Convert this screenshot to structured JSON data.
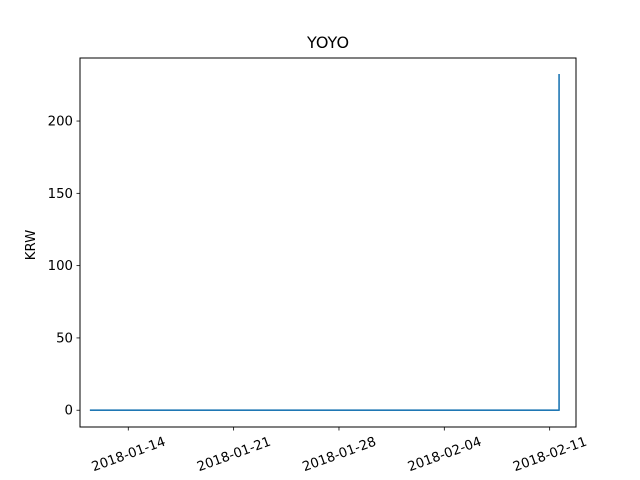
{
  "chart_data": {
    "type": "line",
    "title": "YOYO",
    "xlabel": "",
    "ylabel": "KRW",
    "x_ticks": [
      "2018-01-14",
      "2018-01-21",
      "2018-01-28",
      "2018-02-04",
      "2018-02-11"
    ],
    "y_ticks": [
      0,
      50,
      100,
      150,
      200
    ],
    "xlim": [
      "2018-01-10 19:00",
      "2018-02-12 18:00"
    ],
    "ylim": [
      -11.6,
      243.6
    ],
    "grid": false,
    "series": [
      {
        "color": "#1f77b4",
        "points": [
          {
            "x": "2018-01-11 12:00",
            "y": 0
          },
          {
            "x": "2018-02-11 15:00",
            "y": 0
          },
          {
            "x": "2018-02-11 15:00",
            "y": 232
          }
        ]
      }
    ]
  }
}
